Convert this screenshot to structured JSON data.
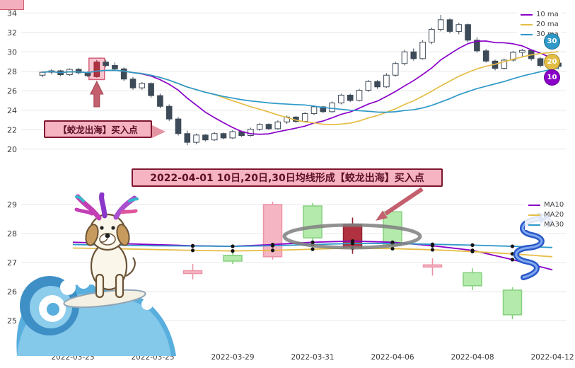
{
  "colors": {
    "ma10": "#8a00c8",
    "ma20": "#e4bd45",
    "ma30": "#2e99c9",
    "down_candle": "#3d4a57",
    "up_candle_fill": "#ffffff",
    "buy_candle": "#b03240",
    "pink_up_fill": "#f5b5c3",
    "pink_up_border": "#ec93a6",
    "green_down_fill": "#b4eaac",
    "green_down_border": "#84d07c",
    "highlight_fill": "#f5a6b4",
    "highlight_border": "#d4607a",
    "arrow": "#c4606e",
    "banner_bg": "#f6b3c1",
    "banner_border": "#7e1630",
    "ellipse": "#7f7f7f",
    "grid": "#e7e7ea",
    "tick_text": "#3a3a3a"
  },
  "top_chart": {
    "legend": [
      {
        "label": "10 ma",
        "color_key": "ma10"
      },
      {
        "label": "20 ma",
        "color_key": "ma20"
      },
      {
        "label": "30 ma",
        "color_key": "ma30"
      }
    ],
    "badges": [
      "30",
      "20",
      "10"
    ],
    "annotation_label": "【蛟龙出海】买入点"
  },
  "banner": {
    "text": "2022-04-01 10日,20日,30日均线形成【蛟龙出海】买入点"
  },
  "bottom_chart": {
    "legend": [
      {
        "label": "MA10",
        "color_key": "ma10"
      },
      {
        "label": "MA20",
        "color_key": "ma20"
      },
      {
        "label": "MA30",
        "color_key": "ma30"
      }
    ]
  },
  "chart_data": [
    {
      "type": "candlestick",
      "panel": "top",
      "legend_position": "top-right",
      "grid": true,
      "ylim": [
        19.4,
        34.6
      ],
      "y_ticks": [
        34,
        32,
        30,
        28,
        26,
        24,
        22,
        20
      ],
      "ma_windows": [
        10,
        20,
        30
      ],
      "highlight_index": 6,
      "highlight_label": "【蛟龙出海】买入点",
      "candles_ohlc": [
        [
          27.6,
          28.0,
          27.4,
          27.9
        ],
        [
          27.9,
          28.2,
          27.7,
          28.05
        ],
        [
          28.05,
          28.15,
          27.5,
          27.65
        ],
        [
          27.65,
          28.3,
          27.55,
          28.2
        ],
        [
          28.2,
          28.35,
          27.7,
          27.85
        ],
        [
          27.85,
          28.0,
          27.4,
          27.55
        ],
        [
          27.45,
          29.15,
          27.35,
          28.95
        ],
        [
          28.95,
          29.2,
          28.4,
          28.6
        ],
        [
          28.6,
          28.9,
          28.1,
          28.25
        ],
        [
          28.25,
          28.4,
          27.0,
          27.2
        ],
        [
          27.2,
          27.4,
          26.1,
          26.3
        ],
        [
          26.3,
          26.9,
          26.1,
          26.75
        ],
        [
          26.75,
          26.85,
          25.3,
          25.5
        ],
        [
          25.5,
          25.7,
          24.2,
          24.4
        ],
        [
          24.4,
          24.6,
          22.9,
          23.1
        ],
        [
          23.1,
          23.3,
          21.4,
          21.6
        ],
        [
          21.6,
          21.9,
          20.4,
          20.7
        ],
        [
          20.7,
          21.6,
          20.5,
          21.45
        ],
        [
          21.45,
          21.55,
          20.8,
          20.95
        ],
        [
          20.95,
          21.75,
          20.85,
          21.6
        ],
        [
          21.6,
          21.7,
          21.0,
          21.15
        ],
        [
          21.15,
          21.95,
          21.05,
          21.8
        ],
        [
          21.8,
          21.9,
          21.25,
          21.4
        ],
        [
          21.4,
          22.2,
          21.3,
          22.05
        ],
        [
          22.05,
          22.7,
          21.9,
          22.55
        ],
        [
          22.55,
          22.65,
          21.95,
          22.1
        ],
        [
          22.1,
          22.95,
          22.0,
          22.8
        ],
        [
          22.8,
          23.45,
          22.6,
          23.3
        ],
        [
          23.3,
          23.4,
          22.7,
          22.85
        ],
        [
          22.85,
          23.8,
          22.75,
          23.65
        ],
        [
          23.65,
          24.5,
          23.5,
          24.35
        ],
        [
          24.35,
          24.45,
          23.7,
          23.85
        ],
        [
          23.85,
          24.9,
          23.75,
          24.75
        ],
        [
          24.75,
          25.7,
          24.6,
          25.55
        ],
        [
          25.55,
          25.7,
          24.85,
          25.0
        ],
        [
          25.0,
          26.2,
          24.9,
          26.05
        ],
        [
          26.05,
          27.1,
          25.9,
          26.95
        ],
        [
          26.95,
          27.1,
          26.2,
          26.4
        ],
        [
          26.4,
          27.8,
          26.3,
          27.6
        ],
        [
          27.6,
          29.0,
          27.45,
          28.8
        ],
        [
          28.8,
          30.2,
          28.6,
          30.0
        ],
        [
          30.0,
          30.35,
          29.1,
          29.3
        ],
        [
          29.3,
          31.2,
          29.2,
          31.0
        ],
        [
          31.0,
          32.5,
          30.8,
          32.3
        ],
        [
          32.3,
          33.8,
          32.1,
          33.3
        ],
        [
          33.3,
          33.45,
          31.9,
          32.1
        ],
        [
          32.1,
          33.0,
          31.8,
          32.8
        ],
        [
          32.8,
          32.9,
          31.0,
          31.2
        ],
        [
          31.2,
          31.5,
          29.9,
          30.1
        ],
        [
          30.1,
          30.3,
          28.9,
          29.05
        ],
        [
          29.05,
          29.2,
          28.1,
          28.3
        ],
        [
          28.3,
          29.3,
          28.2,
          29.15
        ],
        [
          29.15,
          30.1,
          29.0,
          29.95
        ],
        [
          29.95,
          30.3,
          29.5,
          30.15
        ],
        [
          30.15,
          30.25,
          29.1,
          29.3
        ],
        [
          29.3,
          29.45,
          28.4,
          28.6
        ],
        [
          28.6,
          29.0,
          28.3,
          28.85
        ],
        [
          28.85,
          28.95,
          28.2,
          28.5
        ]
      ]
    },
    {
      "type": "candlestick",
      "panel": "bottom",
      "legend_position": "top-right",
      "grid": true,
      "ylim": [
        24.7,
        29.45
      ],
      "y_ticks": [
        29,
        28,
        27,
        26,
        25
      ],
      "x_tick_labels": [
        "2022-03-23",
        "2022-03-25",
        "2022-03-29",
        "2022-03-31",
        "2022-04-06",
        "2022-04-08",
        "2022-04-12"
      ],
      "buy_index": 7,
      "candles_ohlc": [
        null,
        null,
        null,
        [
          26.62,
          26.95,
          26.42,
          26.72
        ],
        [
          27.25,
          27.42,
          26.95,
          27.05
        ],
        [
          27.2,
          29.1,
          27.1,
          29.0
        ],
        [
          28.95,
          29.05,
          27.75,
          27.85
        ],
        [
          27.5,
          28.55,
          27.3,
          28.3
        ],
        [
          28.75,
          28.85,
          27.5,
          27.6
        ],
        [
          26.85,
          27.15,
          26.55,
          26.92
        ],
        [
          26.65,
          26.8,
          26.05,
          26.2
        ],
        [
          26.05,
          26.15,
          25.05,
          25.2
        ],
        null
      ],
      "ma10": [
        27.7,
        27.66,
        27.62,
        27.58,
        27.56,
        27.62,
        27.7,
        27.74,
        27.7,
        27.58,
        27.42,
        27.1,
        26.75
      ],
      "ma20": [
        27.5,
        27.48,
        27.45,
        27.42,
        27.4,
        27.42,
        27.46,
        27.5,
        27.48,
        27.44,
        27.38,
        27.3,
        27.2
      ],
      "ma30": [
        27.62,
        27.6,
        27.58,
        27.57,
        27.56,
        27.58,
        27.62,
        27.66,
        27.66,
        27.63,
        27.6,
        27.56,
        27.52
      ]
    }
  ]
}
